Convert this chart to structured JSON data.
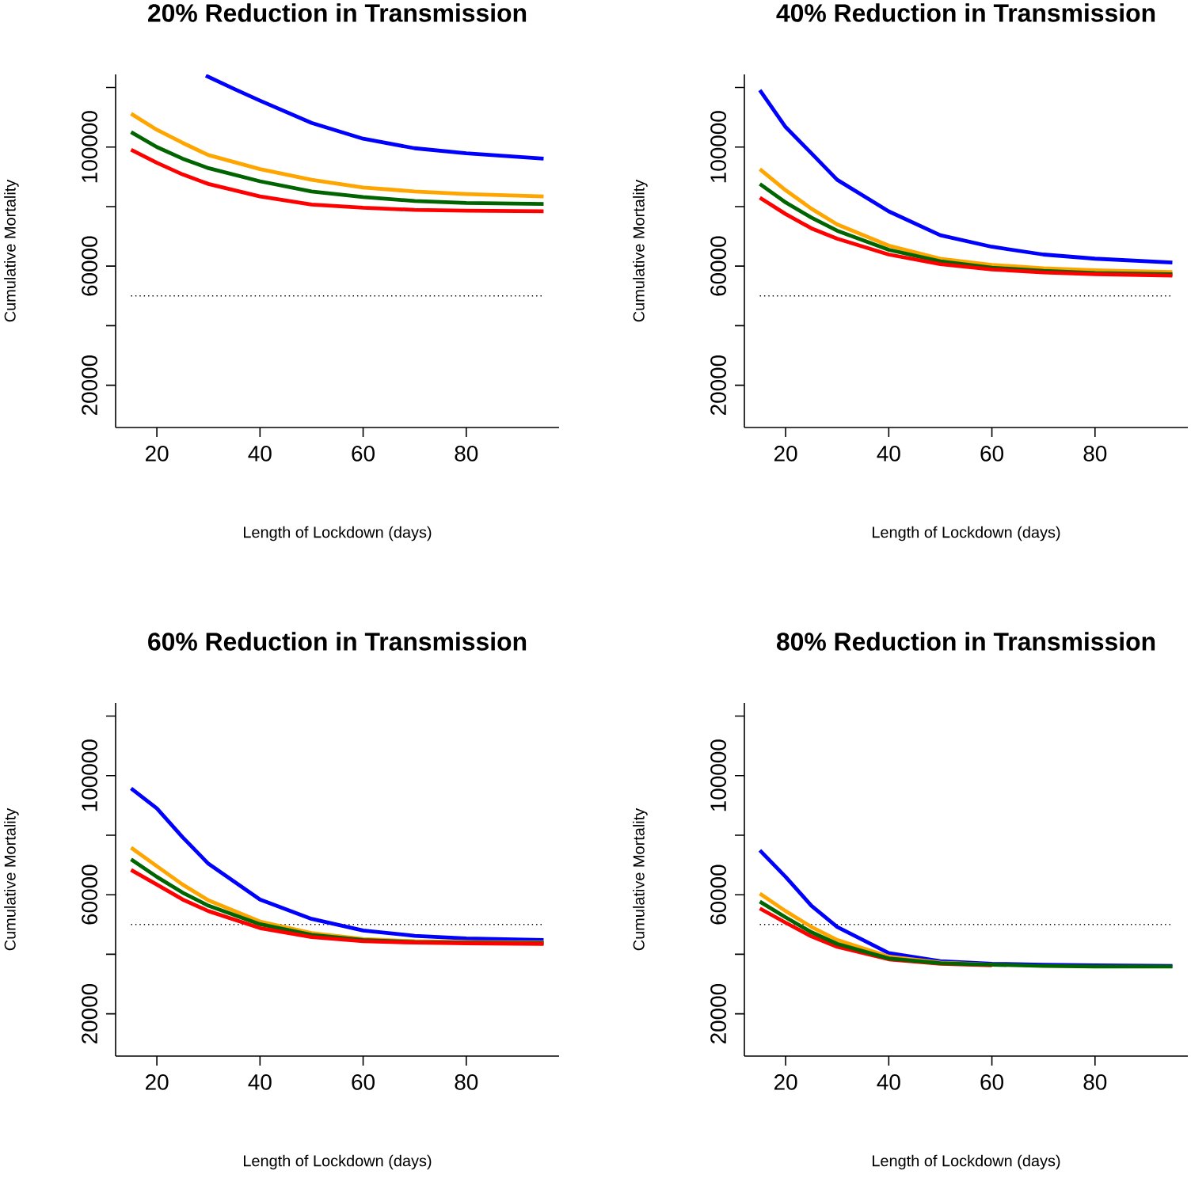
{
  "chart_data": [
    {
      "type": "line",
      "title": "20% Reduction in Transmission",
      "xlabel": "Length of Lockdown (days)",
      "ylabel": "Cumulative Mortality",
      "x": [
        15,
        20,
        25,
        30,
        40,
        50,
        60,
        70,
        80,
        95
      ],
      "series": [
        {
          "color": "#0000ff",
          "x": [
            29.5,
            35,
            40,
            50,
            60,
            70,
            80,
            95
          ],
          "values": [
            124000,
            119500,
            115600,
            108100,
            102800,
            99600,
            97900,
            96100
          ]
        },
        {
          "color": "#ffa500",
          "values": [
            111200,
            105800,
            101400,
            97300,
            92600,
            89000,
            86400,
            85100,
            84200,
            83400
          ]
        },
        {
          "color": "#006400",
          "values": [
            105000,
            100000,
            96100,
            92900,
            88500,
            85100,
            83200,
            81900,
            81200,
            80900
          ]
        },
        {
          "color": "#ff0000",
          "values": [
            99100,
            94700,
            90800,
            87600,
            83400,
            80700,
            79600,
            78900,
            78600,
            78400
          ]
        }
      ],
      "xlim": [
        12,
        98
      ],
      "ylim": [
        5800,
        124400
      ],
      "xticks": [
        20,
        40,
        60,
        80
      ],
      "yticks": [
        20000,
        {
          "value": 40000,
          "label": null
        },
        60000,
        {
          "value": 80000,
          "label": null
        },
        100000,
        {
          "value": 120000,
          "label": null
        }
      ],
      "ref_lines": [
        {
          "axis": "y",
          "value": 50000,
          "color": "#000000",
          "line_style": "dotted"
        }
      ]
    },
    {
      "type": "line",
      "title": "40% Reduction in Transmission",
      "xlabel": "Length of Lockdown (days)",
      "ylabel": "Cumulative Mortality",
      "x": [
        15,
        20,
        25,
        30,
        40,
        50,
        60,
        70,
        80,
        95
      ],
      "series": [
        {
          "color": "#0000ff",
          "values": [
            119100,
            106700,
            97900,
            89000,
            78400,
            70400,
            66500,
            63900,
            62500,
            61200
          ]
        },
        {
          "color": "#ffa500",
          "values": [
            92600,
            85500,
            79300,
            74000,
            66900,
            62500,
            60400,
            59300,
            58600,
            58000
          ]
        },
        {
          "color": "#006400",
          "values": [
            87600,
            81400,
            76300,
            71900,
            65500,
            61600,
            59500,
            58400,
            57700,
            57300
          ]
        },
        {
          "color": "#ff0000",
          "values": [
            83000,
            77500,
            72700,
            69200,
            63900,
            60700,
            58900,
            57900,
            57300,
            56800
          ]
        }
      ],
      "xlim": [
        12,
        98
      ],
      "ylim": [
        5800,
        124400
      ],
      "xticks": [
        20,
        40,
        60,
        80
      ],
      "yticks": [
        20000,
        {
          "value": 40000,
          "label": null
        },
        60000,
        {
          "value": 80000,
          "label": null
        },
        100000,
        {
          "value": 120000,
          "label": null
        }
      ],
      "ref_lines": [
        {
          "axis": "y",
          "value": 50000,
          "color": "#000000",
          "line_style": "dotted"
        }
      ]
    },
    {
      "type": "line",
      "title": "60% Reduction in Transmission",
      "xlabel": "Length of Lockdown (days)",
      "ylabel": "Cumulative Mortality",
      "x": [
        15,
        20,
        25,
        30,
        40,
        50,
        60,
        70,
        80,
        95
      ],
      "series": [
        {
          "color": "#0000ff",
          "values": [
            95700,
            89000,
            79300,
            70400,
            58400,
            51900,
            48000,
            46200,
            45300,
            44800
          ]
        },
        {
          "color": "#ffa500",
          "values": [
            75800,
            69600,
            63400,
            58100,
            51000,
            47100,
            45100,
            44400,
            44100,
            43900
          ]
        },
        {
          "color": "#006400",
          "values": [
            71900,
            66000,
            60700,
            56300,
            50100,
            46500,
            44800,
            44100,
            43900,
            43700
          ]
        },
        {
          "color": "#ff0000",
          "values": [
            68300,
            63400,
            58400,
            54500,
            48800,
            45800,
            44400,
            43900,
            43700,
            43500
          ]
        }
      ],
      "xlim": [
        12,
        98
      ],
      "ylim": [
        5800,
        124400
      ],
      "xticks": [
        20,
        40,
        60,
        80
      ],
      "yticks": [
        20000,
        {
          "value": 40000,
          "label": null
        },
        60000,
        {
          "value": 80000,
          "label": null
        },
        100000,
        {
          "value": 120000,
          "label": null
        }
      ],
      "ref_lines": [
        {
          "axis": "y",
          "value": 50000,
          "color": "#000000",
          "line_style": "dotted"
        }
      ]
    },
    {
      "type": "line",
      "title": "80% Reduction in Transmission",
      "xlabel": "Length of Lockdown (days)",
      "ylabel": "Cumulative Mortality",
      "x": [
        15,
        20,
        25,
        30,
        40,
        50,
        60,
        70,
        80,
        95
      ],
      "series": [
        {
          "color": "#0000ff",
          "values": [
            74900,
            66000,
            56300,
            49200,
            40400,
            37700,
            36800,
            36500,
            36300,
            36100
          ]
        },
        {
          "color": "#ffa500",
          "values": [
            60400,
            54500,
            49200,
            44800,
            39200,
            37200,
            36500,
            null,
            null,
            null
          ]
        },
        {
          "color": "#ff0000",
          "values": [
            55400,
            50600,
            46000,
            42500,
            38300,
            36800,
            36300,
            null,
            null,
            null
          ]
        },
        {
          "color": "#006400",
          "values": [
            57700,
            52400,
            47400,
            43500,
            38600,
            37000,
            36500,
            36100,
            35900,
            35900
          ]
        }
      ],
      "xlim": [
        12,
        98
      ],
      "ylim": [
        5800,
        124400
      ],
      "xticks": [
        20,
        40,
        60,
        80
      ],
      "yticks": [
        20000,
        {
          "value": 40000,
          "label": null
        },
        60000,
        {
          "value": 80000,
          "label": null
        },
        100000,
        {
          "value": 120000,
          "label": null
        }
      ],
      "ref_lines": [
        {
          "axis": "y",
          "value": 50000,
          "color": "#000000",
          "line_style": "dotted"
        }
      ]
    }
  ]
}
